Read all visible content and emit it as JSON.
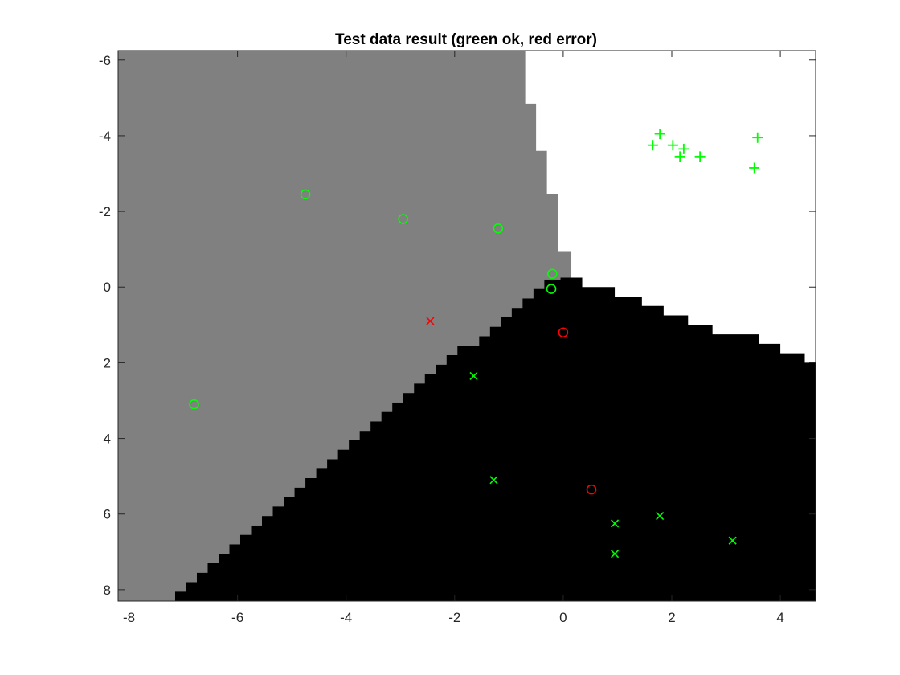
{
  "chart_data": {
    "type": "scatter",
    "title": "Test data result (green ok, red error)",
    "xlabel": "",
    "ylabel": "",
    "xlim": [
      -8.2,
      4.65
    ],
    "ylim": [
      -6.25,
      8.3
    ],
    "y_axis_reversed": true,
    "grid": false,
    "legend": "none",
    "x_ticks": [
      -8,
      -6,
      -4,
      -2,
      0,
      2,
      4
    ],
    "y_ticks": [
      -6,
      -4,
      -2,
      0,
      2,
      4,
      6,
      8
    ],
    "x_tick_labels": [
      "-8",
      "-6",
      "-4",
      "-2",
      "0",
      "2",
      "4"
    ],
    "y_tick_labels": [
      "-6",
      "-4",
      "-2",
      "0",
      "2",
      "4",
      "6",
      "8"
    ],
    "colors": {
      "ok": "#00ff00",
      "error": "#ff0000",
      "region_circle_class": "#808080",
      "region_cross_class": "#000000",
      "region_plus_class": "#ffffff",
      "axes": "#262626"
    },
    "decision_regions": {
      "gray_top_boundary": [
        [
          0.0,
          -6.25
        ],
        [
          -0.7,
          -6.25
        ],
        [
          -0.7,
          -4.85
        ],
        [
          -0.5,
          -4.85
        ],
        [
          -0.5,
          -3.6
        ],
        [
          -0.3,
          -3.6
        ],
        [
          -0.3,
          -2.45
        ],
        [
          -0.1,
          -2.45
        ],
        [
          -0.1,
          -0.95
        ],
        [
          0.15,
          -0.95
        ],
        [
          0.15,
          0.0
        ]
      ],
      "black_region_polygon": [
        [
          -7.15,
          8.3
        ],
        [
          -7.15,
          8.05
        ],
        [
          -6.95,
          8.05
        ],
        [
          -6.95,
          7.8
        ],
        [
          -6.75,
          7.8
        ],
        [
          -6.75,
          7.55
        ],
        [
          -6.55,
          7.55
        ],
        [
          -6.55,
          7.3
        ],
        [
          -6.35,
          7.3
        ],
        [
          -6.35,
          7.05
        ],
        [
          -6.15,
          7.05
        ],
        [
          -6.15,
          6.8
        ],
        [
          -5.95,
          6.8
        ],
        [
          -5.95,
          6.55
        ],
        [
          -5.75,
          6.55
        ],
        [
          -5.75,
          6.3
        ],
        [
          -5.55,
          6.3
        ],
        [
          -5.55,
          6.05
        ],
        [
          -5.35,
          6.05
        ],
        [
          -5.35,
          5.8
        ],
        [
          -5.15,
          5.8
        ],
        [
          -5.15,
          5.55
        ],
        [
          -4.95,
          5.55
        ],
        [
          -4.95,
          5.3
        ],
        [
          -4.75,
          5.3
        ],
        [
          -4.75,
          5.05
        ],
        [
          -4.55,
          5.05
        ],
        [
          -4.55,
          4.8
        ],
        [
          -4.35,
          4.8
        ],
        [
          -4.35,
          4.55
        ],
        [
          -4.15,
          4.55
        ],
        [
          -4.15,
          4.3
        ],
        [
          -3.95,
          4.3
        ],
        [
          -3.95,
          4.05
        ],
        [
          -3.75,
          4.05
        ],
        [
          -3.75,
          3.8
        ],
        [
          -3.55,
          3.8
        ],
        [
          -3.55,
          3.55
        ],
        [
          -3.35,
          3.55
        ],
        [
          -3.35,
          3.3
        ],
        [
          -3.15,
          3.3
        ],
        [
          -3.15,
          3.05
        ],
        [
          -2.95,
          3.05
        ],
        [
          -2.95,
          2.8
        ],
        [
          -2.75,
          2.8
        ],
        [
          -2.75,
          2.55
        ],
        [
          -2.55,
          2.55
        ],
        [
          -2.55,
          2.3
        ],
        [
          -2.35,
          2.3
        ],
        [
          -2.35,
          2.05
        ],
        [
          -2.15,
          2.05
        ],
        [
          -2.15,
          1.8
        ],
        [
          -1.95,
          1.8
        ],
        [
          -1.95,
          1.55
        ],
        [
          -1.55,
          1.55
        ],
        [
          -1.55,
          1.3
        ],
        [
          -1.35,
          1.3
        ],
        [
          -1.35,
          1.05
        ],
        [
          -1.15,
          1.05
        ],
        [
          -1.15,
          0.8
        ],
        [
          -0.95,
          0.8
        ],
        [
          -0.95,
          0.55
        ],
        [
          -0.75,
          0.55
        ],
        [
          -0.75,
          0.3
        ],
        [
          -0.55,
          0.3
        ],
        [
          -0.55,
          0.05
        ],
        [
          -0.35,
          0.05
        ],
        [
          -0.35,
          -0.2
        ],
        [
          -0.05,
          -0.2
        ],
        [
          -0.05,
          -0.25
        ],
        [
          0.35,
          -0.25
        ],
        [
          0.35,
          0.0
        ],
        [
          0.95,
          0.0
        ],
        [
          0.95,
          0.25
        ],
        [
          1.45,
          0.25
        ],
        [
          1.45,
          0.5
        ],
        [
          1.85,
          0.5
        ],
        [
          1.85,
          0.75
        ],
        [
          2.3,
          0.75
        ],
        [
          2.3,
          1.0
        ],
        [
          2.75,
          1.0
        ],
        [
          2.75,
          1.25
        ],
        [
          3.6,
          1.25
        ],
        [
          3.6,
          1.5
        ],
        [
          4.0,
          1.5
        ],
        [
          4.0,
          1.75
        ],
        [
          4.45,
          1.75
        ],
        [
          4.45,
          2.0
        ],
        [
          4.65,
          2.0
        ],
        [
          4.65,
          8.3
        ]
      ]
    },
    "series": [
      {
        "marker": "circle",
        "status": "ok",
        "points": [
          [
            -6.8,
            3.1
          ],
          [
            -4.75,
            -2.45
          ],
          [
            -2.95,
            -1.8
          ],
          [
            -1.2,
            -1.55
          ],
          [
            -0.2,
            -0.35
          ],
          [
            -0.22,
            0.05
          ]
        ]
      },
      {
        "marker": "circle",
        "status": "error",
        "points": [
          [
            0.0,
            1.2
          ],
          [
            0.52,
            5.35
          ]
        ]
      },
      {
        "marker": "cross",
        "status": "ok",
        "points": [
          [
            -1.65,
            2.35
          ],
          [
            -1.28,
            5.1
          ],
          [
            0.95,
            6.25
          ],
          [
            0.95,
            7.05
          ],
          [
            1.78,
            6.05
          ],
          [
            3.12,
            6.7
          ]
        ]
      },
      {
        "marker": "cross",
        "status": "error",
        "points": [
          [
            -2.45,
            0.9
          ]
        ]
      },
      {
        "marker": "plus",
        "status": "ok",
        "points": [
          [
            1.65,
            -3.75
          ],
          [
            1.78,
            -4.05
          ],
          [
            2.02,
            -3.75
          ],
          [
            2.15,
            -3.45
          ],
          [
            2.22,
            -3.65
          ],
          [
            2.52,
            -3.45
          ],
          [
            3.52,
            -3.15
          ],
          [
            3.58,
            -3.95
          ]
        ]
      }
    ]
  }
}
